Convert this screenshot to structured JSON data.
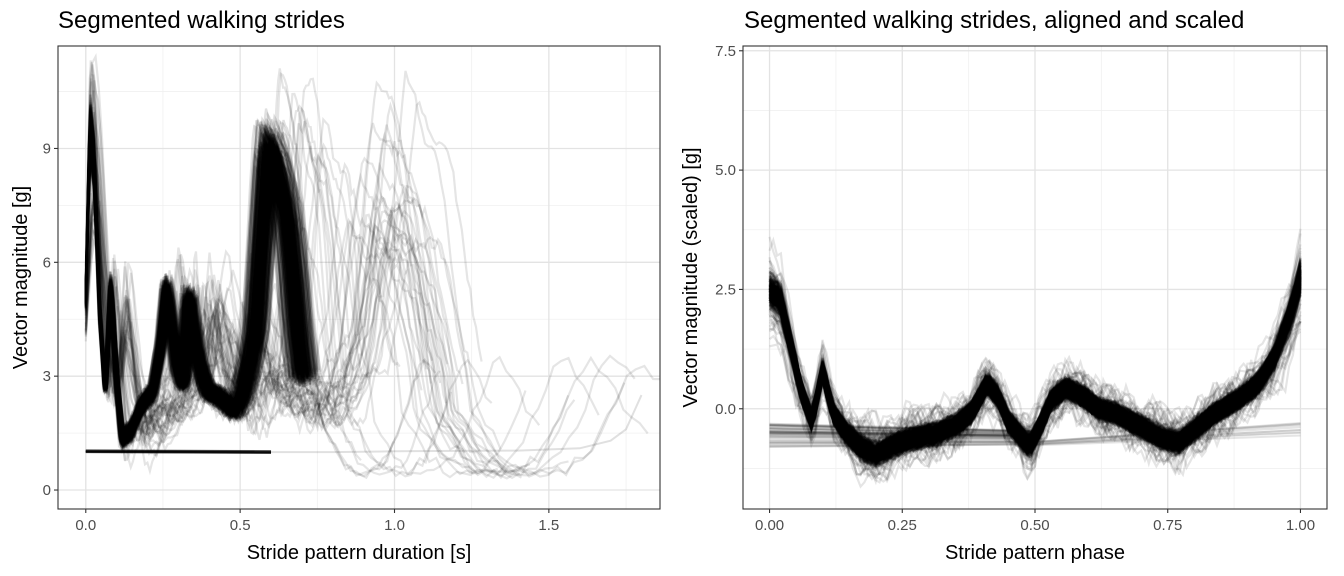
{
  "chart_data": [
    {
      "type": "line",
      "title": "Segmented walking strides",
      "xlabel": "Stride pattern duration [s]",
      "ylabel": "Vector magnitude [g]",
      "xlim": [
        -0.09,
        1.86
      ],
      "ylim": [
        -0.5,
        11.7
      ],
      "x_ticks": [
        0.0,
        0.5,
        1.0,
        1.5
      ],
      "x_tick_labels": [
        "0.0",
        "0.5",
        "1.0",
        "1.5"
      ],
      "y_ticks": [
        0,
        3,
        6,
        9
      ],
      "y_tick_labels": [
        "0",
        "3",
        "6",
        "9"
      ],
      "x_minor": [
        0.25,
        0.75,
        1.25,
        1.75
      ],
      "y_minor": [
        1.5,
        4.5,
        7.5,
        10.5
      ],
      "grid": true,
      "line_color": "#000000",
      "line_opacity": 0.12,
      "series_note_count": 400,
      "template": {
        "x": [
          0.0,
          0.015,
          0.03,
          0.05,
          0.07,
          0.09,
          0.11,
          0.13,
          0.16,
          0.2,
          0.24,
          0.27,
          0.29,
          0.31,
          0.33,
          0.35,
          0.37,
          0.39,
          0.41,
          0.44,
          0.47,
          0.5,
          0.53,
          0.56,
          0.59,
          0.61,
          0.63,
          0.655,
          0.68,
          0.7,
          0.72,
          0.74,
          0.76,
          0.78
        ],
        "y": [
          5.5,
          10.5,
          9.5,
          5.0,
          2.5,
          5.8,
          3.0,
          1.2,
          1.4,
          2.2,
          2.6,
          4.0,
          5.7,
          4.5,
          3.2,
          2.8,
          5.6,
          4.2,
          3.3,
          2.6,
          2.5,
          2.3,
          2.0,
          2.4,
          3.5,
          4.5,
          7.0,
          10.0,
          9.5,
          8.8,
          8.0,
          6.5,
          4.5,
          3.0
        ]
      },
      "tail": {
        "x": [
          0.78,
          0.82,
          0.86,
          0.9,
          0.94,
          0.98,
          1.02,
          1.06,
          1.1,
          1.14,
          1.18,
          1.22,
          1.26,
          1.3
        ],
        "y": [
          3.0,
          2.0,
          1.1,
          0.7,
          0.6,
          0.7,
          1.2,
          2.3,
          3.8,
          4.8,
          4.0,
          2.9,
          2.2,
          1.8
        ]
      },
      "baseline": {
        "x": [
          0.0,
          0.6
        ],
        "y": [
          1.02,
          1.0
        ]
      },
      "outlier": {
        "x": [
          0.0,
          0.4,
          0.8,
          1.0,
          1.2,
          1.4,
          1.6,
          1.7,
          1.75,
          1.8
        ],
        "y": [
          1.0,
          1.0,
          1.0,
          1.02,
          1.03,
          1.04,
          1.1,
          1.3,
          1.6,
          2.5
        ]
      }
    },
    {
      "type": "line",
      "title": "Segmented walking strides, aligned and scaled",
      "xlabel": "Stride pattern phase",
      "ylabel": "Vector magnitude (scaled) [g]",
      "xlim": [
        -0.05,
        1.05
      ],
      "ylim": [
        -2.1,
        7.6
      ],
      "x_ticks": [
        0.0,
        0.25,
        0.5,
        0.75,
        1.0
      ],
      "x_tick_labels": [
        "0.00",
        "0.25",
        "0.50",
        "0.75",
        "1.00"
      ],
      "y_ticks": [
        0.0,
        2.5,
        5.0,
        7.5
      ],
      "y_tick_labels": [
        "0.0",
        "2.5",
        "5.0",
        "7.5"
      ],
      "x_minor": [
        0.125,
        0.375,
        0.625,
        0.875
      ],
      "y_minor": [
        -1.25,
        1.25,
        3.75,
        6.25
      ],
      "grid": true,
      "line_color": "#000000",
      "line_opacity": 0.12,
      "series_note_count": 400,
      "template": {
        "x": [
          0.0,
          0.02,
          0.04,
          0.06,
          0.08,
          0.1,
          0.12,
          0.14,
          0.17,
          0.2,
          0.23,
          0.27,
          0.31,
          0.35,
          0.38,
          0.41,
          0.43,
          0.45,
          0.47,
          0.49,
          0.51,
          0.53,
          0.56,
          0.59,
          0.62,
          0.65,
          0.68,
          0.71,
          0.74,
          0.77,
          0.8,
          0.84,
          0.88,
          0.92,
          0.95,
          0.98,
          1.0
        ],
        "y": [
          2.8,
          2.6,
          1.5,
          0.4,
          -0.3,
          0.9,
          -0.1,
          -0.5,
          -0.9,
          -1.1,
          -0.9,
          -0.7,
          -0.6,
          -0.4,
          -0.1,
          0.6,
          0.3,
          -0.3,
          -0.6,
          -0.9,
          -0.4,
          0.2,
          0.5,
          0.3,
          0.0,
          -0.1,
          -0.3,
          -0.5,
          -0.7,
          -0.8,
          -0.5,
          -0.1,
          0.2,
          0.6,
          1.2,
          2.2,
          3.1
        ]
      },
      "flat_lines": {
        "x": [
          0.0,
          0.5
        ],
        "y": [
          -0.55,
          -0.6
        ]
      }
    }
  ]
}
